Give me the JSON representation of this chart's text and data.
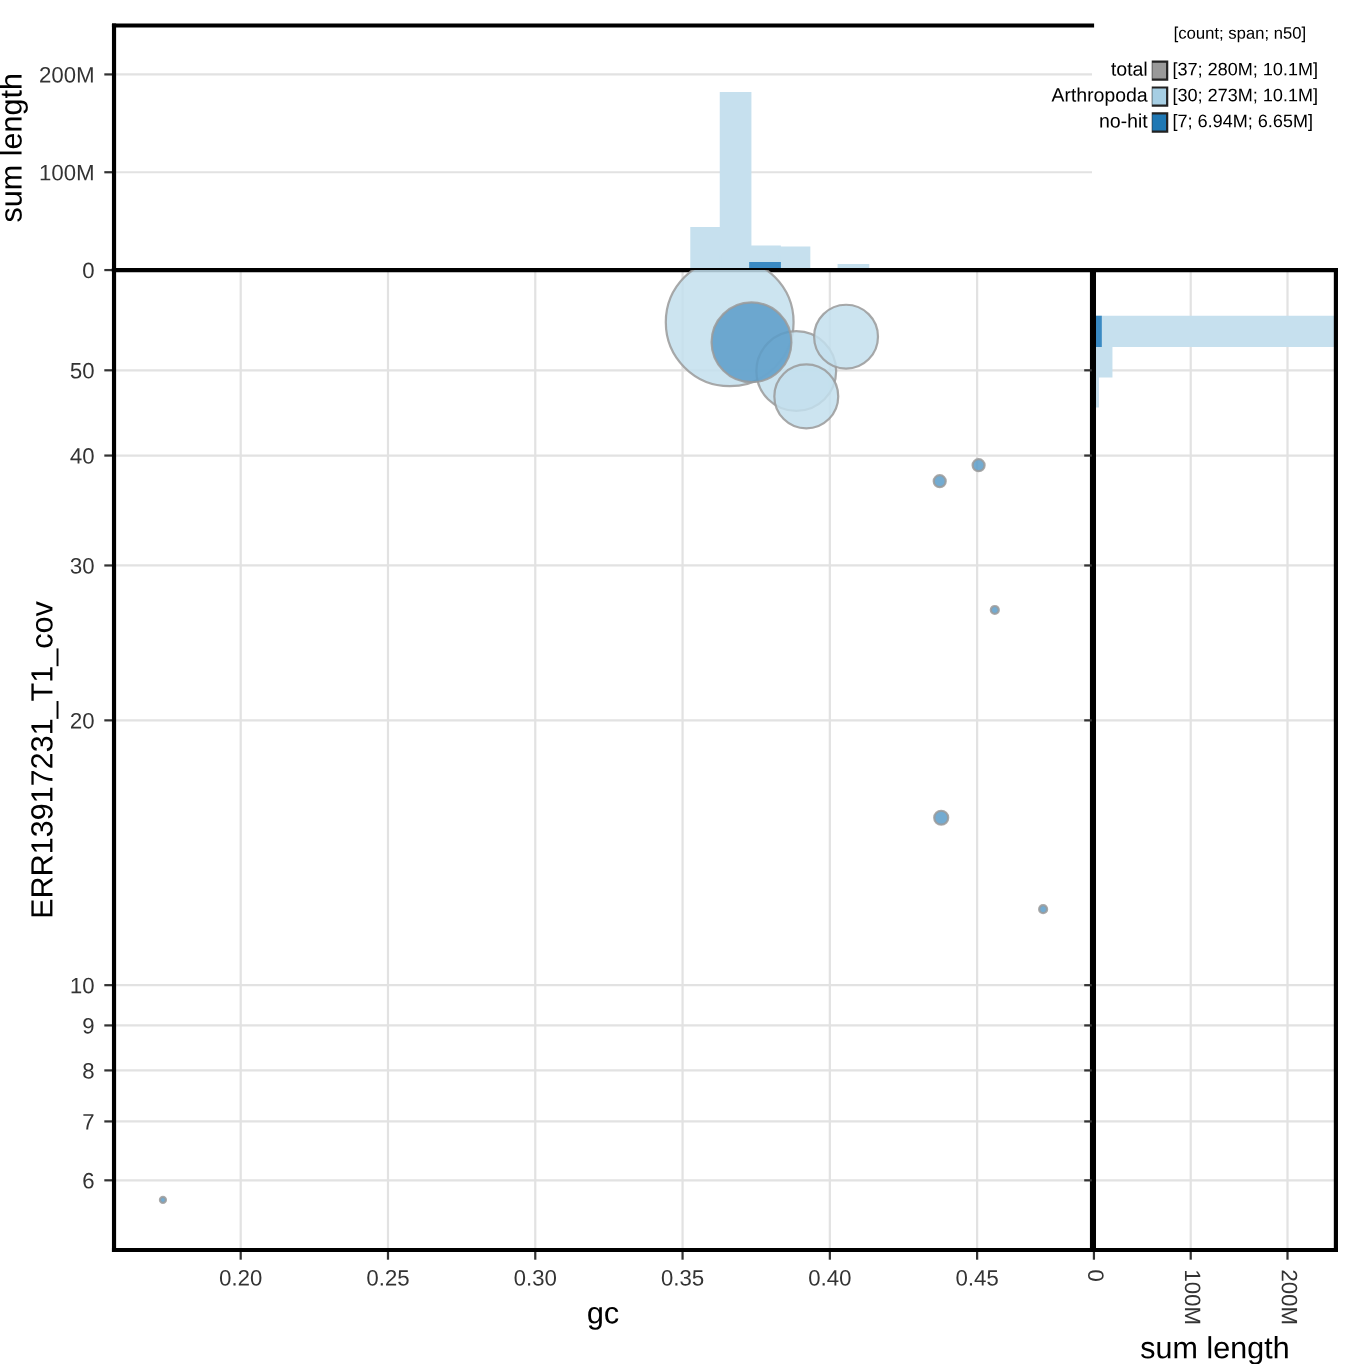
{
  "chart_data": [
    {
      "type": "histogram",
      "ylabel": "sum length",
      "bins": [
        0.353,
        0.363,
        0.373,
        0.383,
        0.393,
        0.403,
        0.413
      ],
      "xlim": [
        0.157,
        0.489
      ],
      "ylim": [
        0,
        250000000
      ],
      "yticks": [
        0,
        {
          "value": 100000000,
          "label": "100M"
        },
        {
          "value": 200000000,
          "label": "200M"
        }
      ],
      "tick_labels": "y",
      "grid": true,
      "series": [
        {
          "color": "#c6e0ee",
          "values": [
            43000000,
            181000000,
            24000000,
            23000000,
            0,
            5000000
          ]
        },
        {
          "color": "#3a8ac3",
          "values": [
            0,
            0,
            7000000,
            0,
            0,
            0
          ]
        }
      ]
    },
    {
      "type": "bubble",
      "xlabel": "gc",
      "ylabel": "ERR13917231_T1_cov",
      "xlim": [
        0.157,
        0.489
      ],
      "ylim": [
        5,
        65
      ],
      "log": "y",
      "grid": true,
      "xticks": [
        {
          "value": 0.2,
          "label": "0.20"
        },
        {
          "value": 0.25,
          "label": "0.25"
        },
        {
          "value": 0.3,
          "label": "0.30"
        },
        {
          "value": 0.35,
          "label": "0.35"
        },
        {
          "value": 0.4,
          "label": "0.40"
        },
        {
          "value": 0.45,
          "label": "0.45"
        }
      ],
      "yticks": [
        6,
        7,
        8,
        9,
        10,
        20,
        30,
        40,
        50
      ],
      "series": [
        {
          "color": "#c3dfed",
          "x": [
            0.366,
            0.3886,
            0.392,
            0.4055
          ],
          "values": [
            56.7,
            49.9,
            46.7,
            54.6
          ],
          "sizes": [
            1.0,
            0.39,
            0.25,
            0.25
          ]
        },
        {
          "color": "#5a9cc9",
          "x": [
            0.3734,
            0.4373,
            0.4505,
            0.4378,
            0.456,
            0.4724,
            0.1736
          ],
          "values": [
            53.8,
            37.4,
            39.0,
            15.5,
            26.7,
            12.2,
            5.7
          ],
          "sizes": [
            0.39,
            0.0088,
            0.0088,
            0.012,
            0.0039,
            0.0039,
            0.0022
          ]
        }
      ]
    },
    {
      "type": "histogram",
      "orientation": "horizontal",
      "xlabel": "sum length",
      "bins": [
        45.5,
        49.2,
        53.3,
        57.5
      ],
      "ylim": [
        5,
        65
      ],
      "log": "y",
      "xlim": [
        0,
        250000000
      ],
      "yticks": [
        6,
        7,
        8,
        9,
        10,
        20,
        30,
        40,
        50
      ],
      "xticks": [
        0,
        {
          "value": 100000000,
          "label": "100M"
        },
        {
          "value": 200000000,
          "label": "200M"
        }
      ],
      "tick_labels": "x",
      "grid": true,
      "series": [
        {
          "color": "#c6e0ee",
          "values": [
            4000000,
            18000000,
            248000000
          ]
        },
        {
          "color": "#3a8ac3",
          "values": [
            0,
            0,
            7000000
          ]
        }
      ]
    },
    {
      "type": "other",
      "legend_title": "[count; span; n50]",
      "categories": [
        "total",
        "Arthropoda",
        "no-hit"
      ],
      "colors": [
        "#999999",
        "#a6cee3",
        "#1f78b4"
      ],
      "annotations": [
        "[37; 280M; 10.1M]",
        "[30; 273M; 10.1M]",
        "[7; 6.94M; 6.65M]"
      ]
    }
  ]
}
